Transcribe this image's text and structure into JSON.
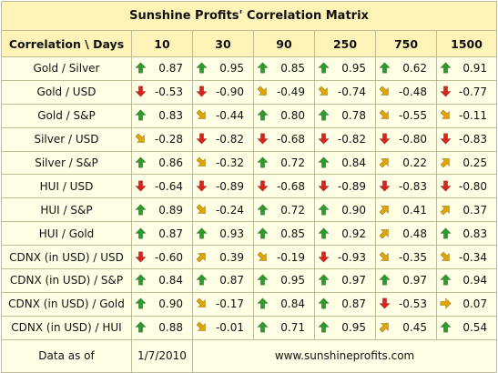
{
  "title": "Sunshine Profits' Correlation Matrix",
  "corner_label": "Correlation \\ Days",
  "periods": [
    "10",
    "30",
    "90",
    "250",
    "750",
    "1500"
  ],
  "colors": {
    "title_bg": "#fff3b8",
    "body_bg": "#ffffe6",
    "border": "#bdbd9a",
    "up": "#2c9a2c",
    "down": "#d8241a",
    "diag": "#e3a400"
  },
  "rows": [
    {
      "label": "Gold / Silver",
      "cells": [
        {
          "value": "0.87",
          "arrow": "up"
        },
        {
          "value": "0.95",
          "arrow": "up"
        },
        {
          "value": "0.85",
          "arrow": "up"
        },
        {
          "value": "0.95",
          "arrow": "up"
        },
        {
          "value": "0.62",
          "arrow": "up"
        },
        {
          "value": "0.91",
          "arrow": "up"
        }
      ]
    },
    {
      "label": "Gold / USD",
      "cells": [
        {
          "value": "-0.53",
          "arrow": "down"
        },
        {
          "value": "-0.90",
          "arrow": "down"
        },
        {
          "value": "-0.49",
          "arrow": "down-right"
        },
        {
          "value": "-0.74",
          "arrow": "down-right"
        },
        {
          "value": "-0.48",
          "arrow": "down-right"
        },
        {
          "value": "-0.77",
          "arrow": "down"
        }
      ]
    },
    {
      "label": "Gold / S&P",
      "cells": [
        {
          "value": "0.83",
          "arrow": "up"
        },
        {
          "value": "-0.44",
          "arrow": "down-right"
        },
        {
          "value": "0.80",
          "arrow": "up"
        },
        {
          "value": "0.78",
          "arrow": "up"
        },
        {
          "value": "-0.55",
          "arrow": "down-right"
        },
        {
          "value": "-0.11",
          "arrow": "down-right"
        }
      ]
    },
    {
      "label": "Silver / USD",
      "cells": [
        {
          "value": "-0.28",
          "arrow": "down-right"
        },
        {
          "value": "-0.82",
          "arrow": "down"
        },
        {
          "value": "-0.68",
          "arrow": "down"
        },
        {
          "value": "-0.82",
          "arrow": "down"
        },
        {
          "value": "-0.80",
          "arrow": "down"
        },
        {
          "value": "-0.83",
          "arrow": "down"
        }
      ]
    },
    {
      "label": "Silver / S&P",
      "cells": [
        {
          "value": "0.86",
          "arrow": "up"
        },
        {
          "value": "-0.32",
          "arrow": "down-right"
        },
        {
          "value": "0.72",
          "arrow": "up"
        },
        {
          "value": "0.84",
          "arrow": "up"
        },
        {
          "value": "0.22",
          "arrow": "up-right"
        },
        {
          "value": "0.25",
          "arrow": "up-right"
        }
      ]
    },
    {
      "label": "HUI / USD",
      "cells": [
        {
          "value": "-0.64",
          "arrow": "down"
        },
        {
          "value": "-0.89",
          "arrow": "down"
        },
        {
          "value": "-0.68",
          "arrow": "down"
        },
        {
          "value": "-0.89",
          "arrow": "down"
        },
        {
          "value": "-0.83",
          "arrow": "down"
        },
        {
          "value": "-0.80",
          "arrow": "down"
        }
      ]
    },
    {
      "label": "HUI / S&P",
      "cells": [
        {
          "value": "0.89",
          "arrow": "up"
        },
        {
          "value": "-0.24",
          "arrow": "down-right"
        },
        {
          "value": "0.72",
          "arrow": "up"
        },
        {
          "value": "0.90",
          "arrow": "up"
        },
        {
          "value": "0.41",
          "arrow": "up-right"
        },
        {
          "value": "0.37",
          "arrow": "up-right"
        }
      ]
    },
    {
      "label": "HUI / Gold",
      "cells": [
        {
          "value": "0.87",
          "arrow": "up"
        },
        {
          "value": "0.93",
          "arrow": "up"
        },
        {
          "value": "0.85",
          "arrow": "up"
        },
        {
          "value": "0.92",
          "arrow": "up"
        },
        {
          "value": "0.48",
          "arrow": "up-right"
        },
        {
          "value": "0.83",
          "arrow": "up"
        }
      ]
    },
    {
      "label": "CDNX (in USD) / USD",
      "cells": [
        {
          "value": "-0.60",
          "arrow": "down"
        },
        {
          "value": "0.39",
          "arrow": "up-right"
        },
        {
          "value": "-0.19",
          "arrow": "down-right"
        },
        {
          "value": "-0.93",
          "arrow": "down"
        },
        {
          "value": "-0.35",
          "arrow": "down-right"
        },
        {
          "value": "-0.34",
          "arrow": "down-right"
        }
      ]
    },
    {
      "label": "CDNX (in USD) / S&P",
      "cells": [
        {
          "value": "0.84",
          "arrow": "up"
        },
        {
          "value": "0.87",
          "arrow": "up"
        },
        {
          "value": "0.95",
          "arrow": "up"
        },
        {
          "value": "0.97",
          "arrow": "up"
        },
        {
          "value": "0.97",
          "arrow": "up"
        },
        {
          "value": "0.94",
          "arrow": "up"
        }
      ]
    },
    {
      "label": "CDNX (in USD) / Gold",
      "cells": [
        {
          "value": "0.90",
          "arrow": "up"
        },
        {
          "value": "-0.17",
          "arrow": "down-right"
        },
        {
          "value": "0.84",
          "arrow": "up"
        },
        {
          "value": "0.87",
          "arrow": "up"
        },
        {
          "value": "-0.53",
          "arrow": "down"
        },
        {
          "value": "0.07",
          "arrow": "right"
        }
      ]
    },
    {
      "label": "CDNX (in USD) / HUI",
      "cells": [
        {
          "value": "0.88",
          "arrow": "up"
        },
        {
          "value": "-0.01",
          "arrow": "down-right"
        },
        {
          "value": "0.71",
          "arrow": "up"
        },
        {
          "value": "0.95",
          "arrow": "up"
        },
        {
          "value": "0.45",
          "arrow": "up-right"
        },
        {
          "value": "0.54",
          "arrow": "up"
        }
      ]
    }
  ],
  "footer": {
    "label": "Data as of",
    "date": "1/7/2010",
    "website": "www.sunshineprofits.com"
  }
}
